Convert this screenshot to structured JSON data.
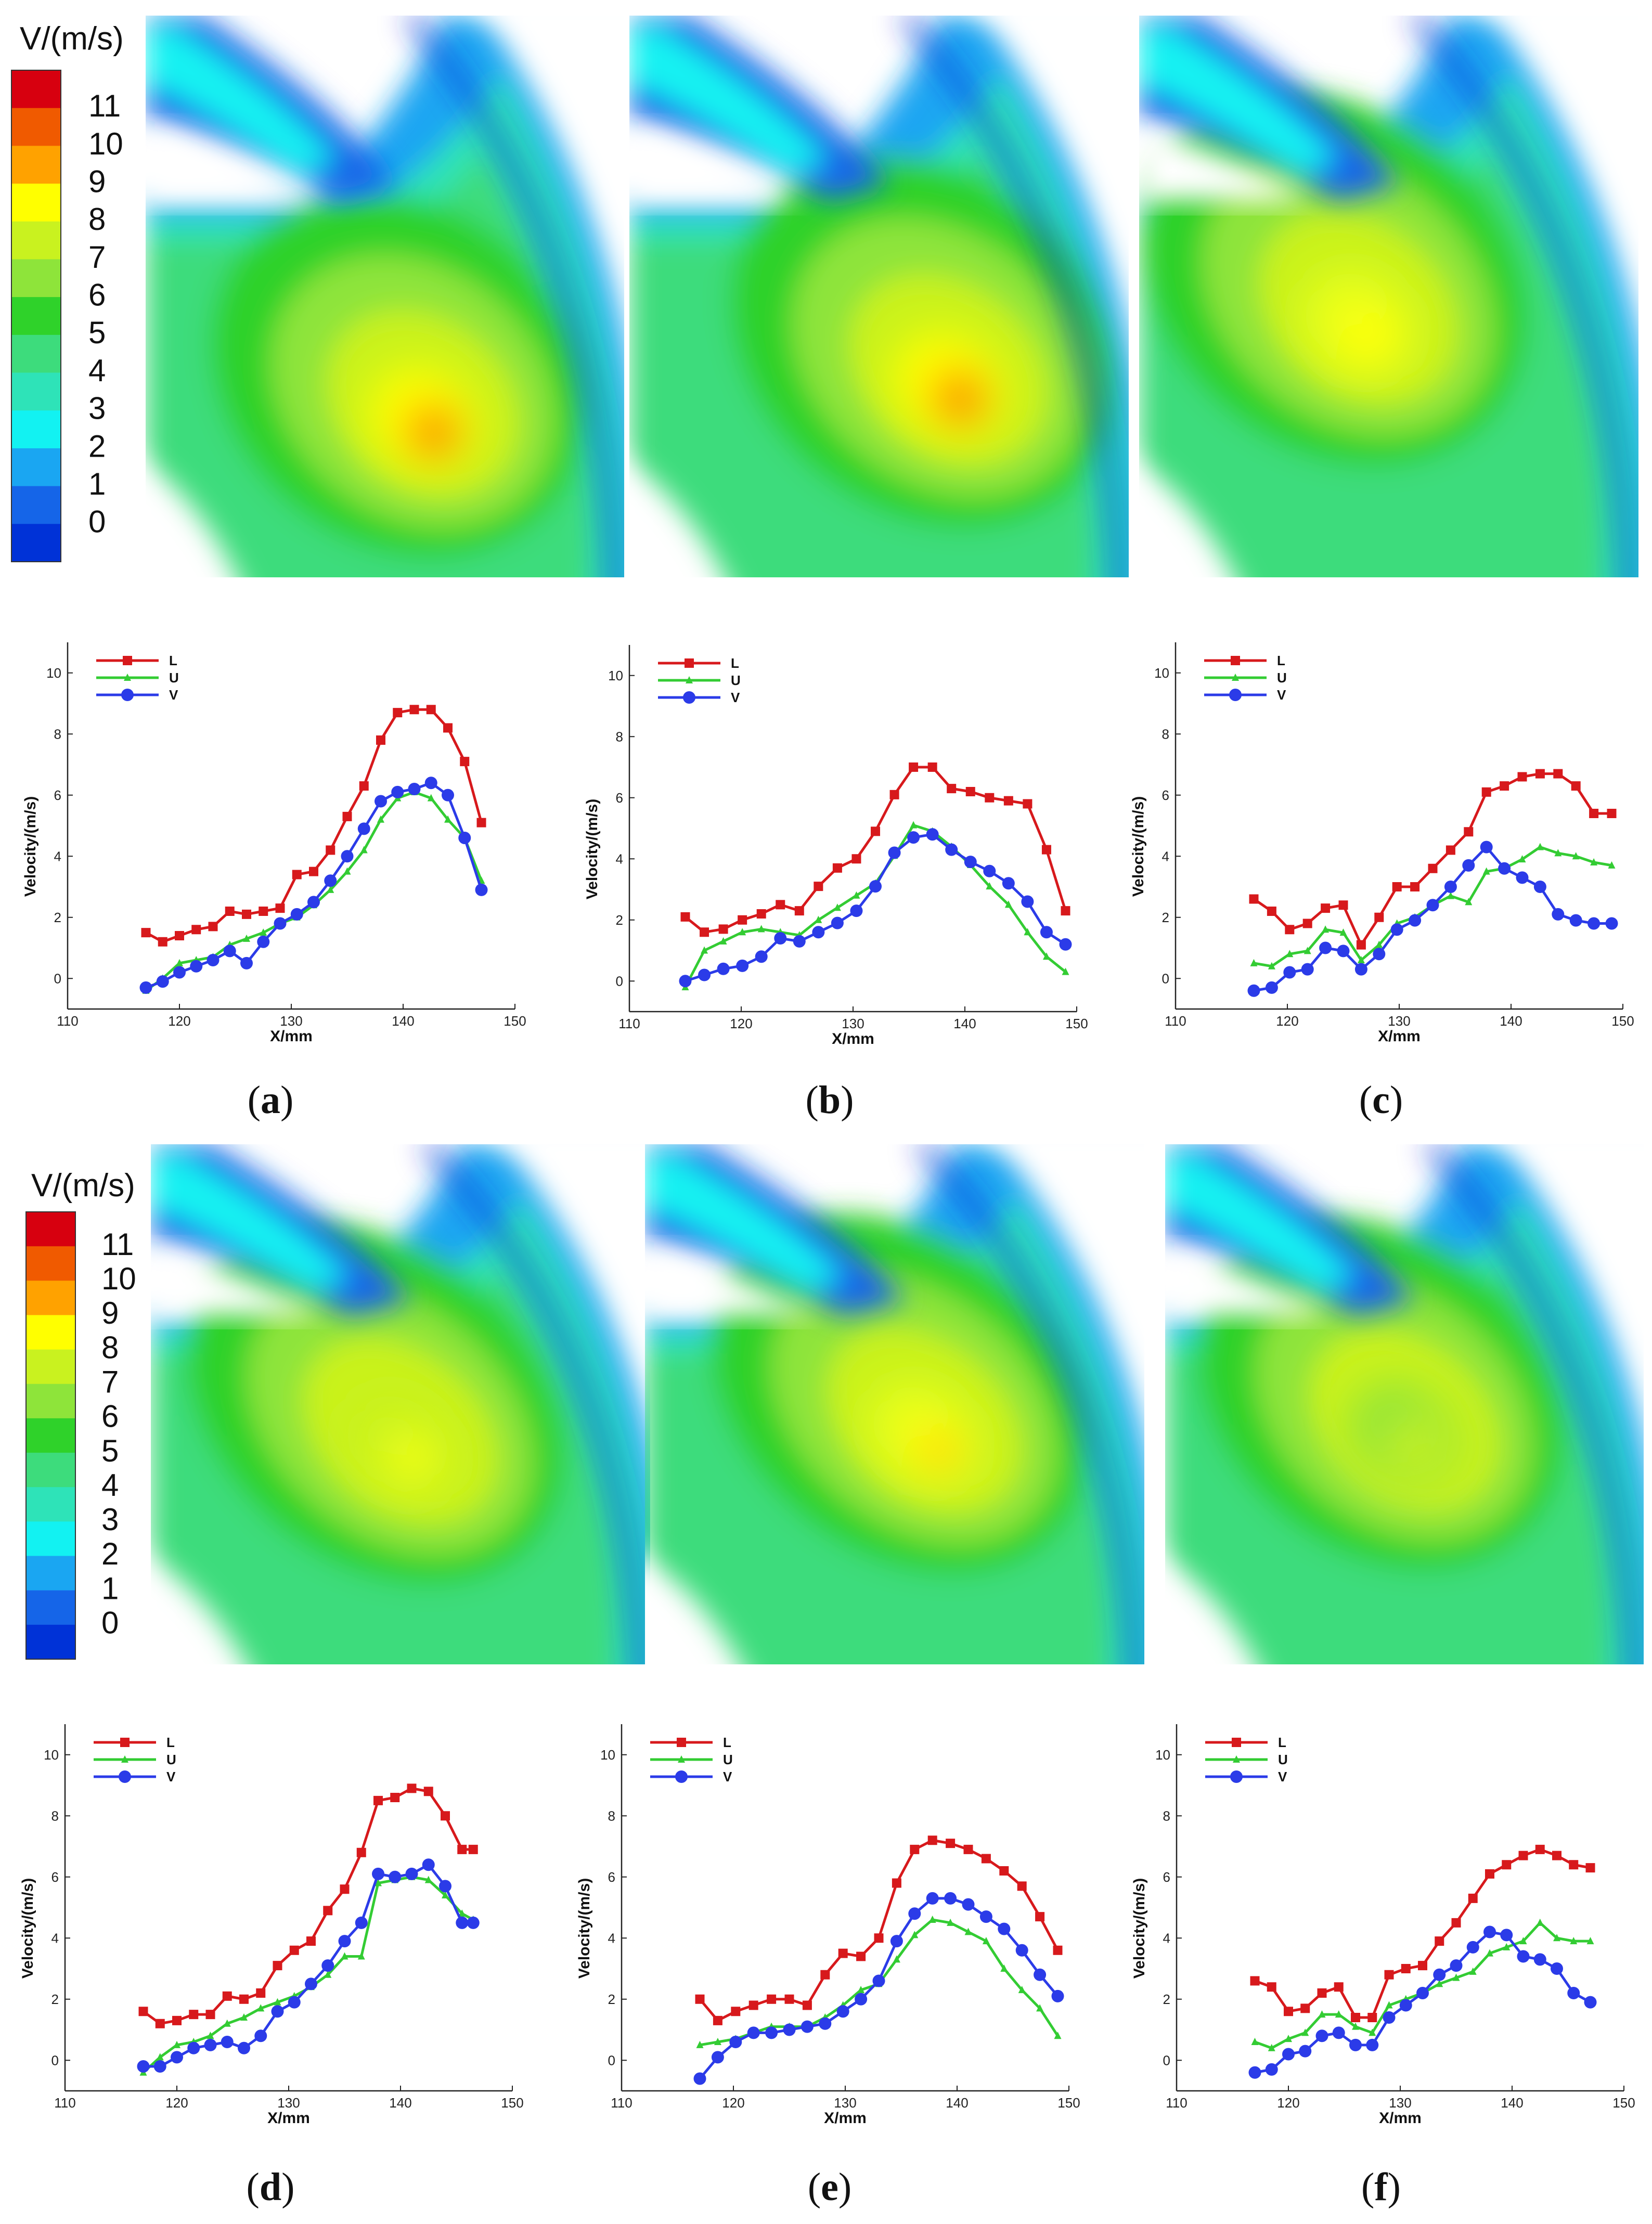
{
  "colorbar": {
    "title": "V/(m/s)",
    "labels": [
      "11",
      "10",
      "9",
      "8",
      "7",
      "6",
      "5",
      "4",
      "3",
      "2",
      "1",
      "0"
    ],
    "colors": [
      "#d7000f",
      "#f05a00",
      "#ffa200",
      "#ffff00",
      "#c9f21f",
      "#8ee43a",
      "#2fd22a",
      "#3ddc7c",
      "#2ee3b8",
      "#12f2f2",
      "#1aa6f2",
      "#1565e8",
      "#0032d7"
    ]
  },
  "series_styles": {
    "L": {
      "color": "#d7191c",
      "marker": "square"
    },
    "U": {
      "color": "#33cc33",
      "marker": "triangle"
    },
    "V": {
      "color": "#2b3be8",
      "marker": "circle"
    }
  },
  "panel_labels": [
    "(a)",
    "(b)",
    "(c)",
    "(d)",
    "(e)",
    "(f)"
  ],
  "chart_data": [
    {
      "type": "line",
      "panel": "a",
      "xlabel": "X/mm",
      "ylabel": "Velocity/(m/s)",
      "xlim": [
        110,
        150
      ],
      "ylim": [
        -1,
        11
      ],
      "xticks": [
        110,
        120,
        130,
        140,
        150
      ],
      "yticks": [
        0,
        2,
        4,
        6,
        8,
        10
      ],
      "series": [
        {
          "name": "L",
          "x": [
            117,
            118.5,
            120,
            121.5,
            123,
            124.5,
            126,
            127.5,
            129,
            130.5,
            132,
            133.5,
            135,
            136.5,
            138,
            139.5,
            141,
            142.5,
            144,
            145.5,
            147
          ],
          "values": [
            1.5,
            1.2,
            1.4,
            1.6,
            1.7,
            2.2,
            2.1,
            2.2,
            2.3,
            3.4,
            3.5,
            4.2,
            5.3,
            6.3,
            7.8,
            8.7,
            8.8,
            8.8,
            8.2,
            7.1,
            5.1
          ]
        },
        {
          "name": "U",
          "x": [
            117,
            118.5,
            120,
            121.5,
            123,
            124.5,
            126,
            127.5,
            129,
            130.5,
            132,
            133.5,
            135,
            136.5,
            138,
            139.5,
            141,
            142.5,
            144,
            145.5,
            147
          ],
          "values": [
            -0.4,
            0.0,
            0.5,
            0.6,
            0.7,
            1.1,
            1.3,
            1.5,
            1.8,
            2.0,
            2.4,
            2.9,
            3.5,
            4.2,
            5.2,
            5.9,
            6.1,
            5.9,
            5.2,
            4.6,
            3.2
          ]
        },
        {
          "name": "V",
          "x": [
            117,
            118.5,
            120,
            121.5,
            123,
            124.5,
            126,
            127.5,
            129,
            130.5,
            132,
            133.5,
            135,
            136.5,
            138,
            139.5,
            141,
            142.5,
            144,
            145.5,
            147
          ],
          "values": [
            -0.3,
            -0.1,
            0.2,
            0.4,
            0.6,
            0.9,
            0.5,
            1.2,
            1.8,
            2.1,
            2.5,
            3.2,
            4.0,
            4.9,
            5.8,
            6.1,
            6.2,
            6.4,
            6.0,
            4.6,
            2.9
          ]
        }
      ]
    },
    {
      "type": "line",
      "panel": "b",
      "xlabel": "X/mm",
      "ylabel": "Velocity/(m/s)",
      "xlim": [
        110,
        150
      ],
      "ylim": [
        -1,
        11
      ],
      "xticks": [
        110,
        120,
        130,
        140,
        150
      ],
      "yticks": [
        0,
        2,
        4,
        6,
        8,
        10
      ],
      "series": [
        {
          "name": "L",
          "x": [
            115,
            116.7,
            118.4,
            120.1,
            121.8,
            123.5,
            125.2,
            126.9,
            128.6,
            130.3,
            132,
            133.7,
            135.4,
            137.1,
            138.8,
            140.5,
            142.2,
            143.9,
            145.6,
            147.3,
            149
          ],
          "values": [
            2.1,
            1.6,
            1.7,
            2.0,
            2.2,
            2.5,
            2.3,
            3.1,
            3.7,
            4.0,
            4.9,
            6.1,
            7.0,
            7.0,
            6.3,
            6.2,
            6.0,
            5.9,
            5.8,
            4.3,
            2.3
          ]
        },
        {
          "name": "U",
          "x": [
            115,
            116.7,
            118.4,
            120.1,
            121.8,
            123.5,
            125.2,
            126.9,
            128.6,
            130.3,
            132,
            133.7,
            135.4,
            137.1,
            138.8,
            140.5,
            142.2,
            143.9,
            145.6,
            147.3,
            149
          ],
          "values": [
            -0.2,
            1.0,
            1.3,
            1.6,
            1.7,
            1.6,
            1.5,
            2.0,
            2.4,
            2.8,
            3.2,
            4.1,
            5.1,
            4.9,
            4.4,
            3.8,
            3.1,
            2.5,
            1.6,
            0.8,
            0.3
          ]
        },
        {
          "name": "V",
          "x": [
            115,
            116.7,
            118.4,
            120.1,
            121.8,
            123.5,
            125.2,
            126.9,
            128.6,
            130.3,
            132,
            133.7,
            135.4,
            137.1,
            138.8,
            140.5,
            142.2,
            143.9,
            145.6,
            147.3,
            149
          ],
          "values": [
            0.0,
            0.2,
            0.4,
            0.5,
            0.8,
            1.4,
            1.3,
            1.6,
            1.9,
            2.3,
            3.1,
            4.2,
            4.7,
            4.8,
            4.3,
            3.9,
            3.6,
            3.2,
            2.6,
            1.6,
            1.2
          ]
        }
      ]
    },
    {
      "type": "line",
      "panel": "c",
      "xlabel": "X/mm",
      "ylabel": "Velocity/(m/s)",
      "xlim": [
        110,
        150
      ],
      "ylim": [
        -1,
        11
      ],
      "xticks": [
        110,
        120,
        130,
        140,
        150
      ],
      "yticks": [
        0,
        2,
        4,
        6,
        8,
        10
      ],
      "series": [
        {
          "name": "L",
          "x": [
            117,
            118.6,
            120.2,
            121.8,
            123.4,
            125,
            126.6,
            128.2,
            129.8,
            131.4,
            133,
            134.6,
            136.2,
            137.8,
            139.4,
            141,
            142.6,
            144.2,
            145.8,
            147.4,
            149
          ],
          "values": [
            2.6,
            2.2,
            1.6,
            1.8,
            2.3,
            2.4,
            1.1,
            2.0,
            3.0,
            3.0,
            3.6,
            4.2,
            4.8,
            6.1,
            6.3,
            6.6,
            6.7,
            6.7,
            6.3,
            5.4,
            5.4
          ]
        },
        {
          "name": "U",
          "x": [
            117,
            118.6,
            120.2,
            121.8,
            123.4,
            125,
            126.6,
            128.2,
            129.8,
            131.4,
            133,
            134.6,
            136.2,
            137.8,
            139.4,
            141,
            142.6,
            144.2,
            145.8,
            147.4,
            149
          ],
          "values": [
            0.5,
            0.4,
            0.8,
            0.9,
            1.6,
            1.5,
            0.6,
            1.1,
            1.8,
            2.0,
            2.4,
            2.7,
            2.5,
            3.5,
            3.6,
            3.9,
            4.3,
            4.1,
            4.0,
            3.8,
            3.7
          ]
        },
        {
          "name": "V",
          "x": [
            117,
            118.6,
            120.2,
            121.8,
            123.4,
            125,
            126.6,
            128.2,
            129.8,
            131.4,
            133,
            134.6,
            136.2,
            137.8,
            139.4,
            141,
            142.6,
            144.2,
            145.8,
            147.4,
            149
          ],
          "values": [
            -0.4,
            -0.3,
            0.2,
            0.3,
            1.0,
            0.9,
            0.3,
            0.8,
            1.6,
            1.9,
            2.4,
            3.0,
            3.7,
            4.3,
            3.6,
            3.3,
            3.0,
            2.1,
            1.9,
            1.8,
            1.8
          ]
        }
      ]
    },
    {
      "type": "line",
      "panel": "d",
      "xlabel": "X/mm",
      "ylabel": "Velocity/(m/s)",
      "xlim": [
        110,
        150
      ],
      "ylim": [
        -1,
        11
      ],
      "xticks": [
        110,
        120,
        130,
        140,
        150
      ],
      "yticks": [
        0,
        2,
        4,
        6,
        8,
        10
      ],
      "series": [
        {
          "name": "L",
          "x": [
            117,
            118.5,
            120,
            121.5,
            123,
            124.5,
            126,
            127.5,
            129,
            130.5,
            132,
            133.5,
            135,
            136.5,
            138,
            139.5,
            141,
            142.5,
            144,
            145.5,
            146.5
          ],
          "values": [
            1.6,
            1.2,
            1.3,
            1.5,
            1.5,
            2.1,
            2.0,
            2.2,
            3.1,
            3.6,
            3.9,
            4.9,
            5.6,
            6.8,
            8.5,
            8.6,
            8.9,
            8.8,
            8.0,
            6.9,
            6.9
          ]
        },
        {
          "name": "U",
          "x": [
            117,
            118.5,
            120,
            121.5,
            123,
            124.5,
            126,
            127.5,
            129,
            130.5,
            132,
            133.5,
            135,
            136.5,
            138,
            139.5,
            141,
            142.5,
            144,
            145.5,
            146.5
          ],
          "values": [
            -0.4,
            0.1,
            0.5,
            0.6,
            0.8,
            1.2,
            1.4,
            1.7,
            1.9,
            2.1,
            2.4,
            2.8,
            3.4,
            3.4,
            5.8,
            5.9,
            6.0,
            5.9,
            5.4,
            4.8,
            4.6
          ]
        },
        {
          "name": "V",
          "x": [
            117,
            118.5,
            120,
            121.5,
            123,
            124.5,
            126,
            127.5,
            129,
            130.5,
            132,
            133.5,
            135,
            136.5,
            138,
            139.5,
            141,
            142.5,
            144,
            145.5,
            146.5
          ],
          "values": [
            -0.2,
            -0.2,
            0.1,
            0.4,
            0.5,
            0.6,
            0.4,
            0.8,
            1.6,
            1.9,
            2.5,
            3.1,
            3.9,
            4.5,
            6.1,
            6.0,
            6.1,
            6.4,
            5.7,
            4.5,
            4.5
          ]
        }
      ]
    },
    {
      "type": "line",
      "panel": "e",
      "xlabel": "X/mm",
      "ylabel": "Velocity/(m/s)",
      "xlim": [
        110,
        150
      ],
      "ylim": [
        -1,
        11
      ],
      "xticks": [
        110,
        120,
        130,
        140,
        150
      ],
      "yticks": [
        0,
        2,
        4,
        6,
        8,
        10
      ],
      "series": [
        {
          "name": "L",
          "x": [
            117,
            118.6,
            120.2,
            121.8,
            123.4,
            125,
            126.6,
            128.2,
            129.8,
            131.4,
            133,
            134.6,
            136.2,
            137.8,
            139.4,
            141,
            142.6,
            144.2,
            145.8,
            147.4,
            149
          ],
          "values": [
            2.0,
            1.3,
            1.6,
            1.8,
            2.0,
            2.0,
            1.8,
            2.8,
            3.5,
            3.4,
            4.0,
            5.8,
            6.9,
            7.2,
            7.1,
            6.9,
            6.6,
            6.2,
            5.7,
            4.7,
            3.6
          ]
        },
        {
          "name": "U",
          "x": [
            117,
            118.6,
            120.2,
            121.8,
            123.4,
            125,
            126.6,
            128.2,
            129.8,
            131.4,
            133,
            134.6,
            136.2,
            137.8,
            139.4,
            141,
            142.6,
            144.2,
            145.8,
            147.4,
            149
          ],
          "values": [
            0.5,
            0.6,
            0.7,
            0.9,
            1.1,
            1.1,
            1.1,
            1.4,
            1.8,
            2.3,
            2.5,
            3.3,
            4.1,
            4.6,
            4.5,
            4.2,
            3.9,
            3.0,
            2.3,
            1.7,
            0.8
          ]
        },
        {
          "name": "V",
          "x": [
            117,
            118.6,
            120.2,
            121.8,
            123.4,
            125,
            126.6,
            128.2,
            129.8,
            131.4,
            133,
            134.6,
            136.2,
            137.8,
            139.4,
            141,
            142.6,
            144.2,
            145.8,
            147.4,
            149
          ],
          "values": [
            -0.6,
            0.1,
            0.6,
            0.9,
            0.9,
            1.0,
            1.1,
            1.2,
            1.6,
            2.0,
            2.6,
            3.9,
            4.8,
            5.3,
            5.3,
            5.1,
            4.7,
            4.3,
            3.6,
            2.8,
            2.1
          ]
        }
      ]
    },
    {
      "type": "line",
      "panel": "f",
      "xlabel": "X/mm",
      "ylabel": "Velocity/(m/s)",
      "xlim": [
        110,
        150
      ],
      "ylim": [
        -1,
        11
      ],
      "xticks": [
        110,
        120,
        130,
        140,
        150
      ],
      "yticks": [
        0,
        2,
        4,
        6,
        8,
        10
      ],
      "series": [
        {
          "name": "L",
          "x": [
            117,
            118.5,
            120,
            121.5,
            123,
            124.5,
            126,
            127.5,
            129,
            130.5,
            132,
            133.5,
            135,
            136.5,
            138,
            139.5,
            141,
            142.5,
            144,
            145.5,
            147
          ],
          "values": [
            2.6,
            2.4,
            1.6,
            1.7,
            2.2,
            2.4,
            1.4,
            1.4,
            2.8,
            3.0,
            3.1,
            3.9,
            4.5,
            5.3,
            6.1,
            6.4,
            6.7,
            6.9,
            6.7,
            6.4,
            6.3
          ]
        },
        {
          "name": "U",
          "x": [
            117,
            118.5,
            120,
            121.5,
            123,
            124.5,
            126,
            127.5,
            129,
            130.5,
            132,
            133.5,
            135,
            136.5,
            138,
            139.5,
            141,
            142.5,
            144,
            145.5,
            147
          ],
          "values": [
            0.6,
            0.4,
            0.7,
            0.9,
            1.5,
            1.5,
            1.1,
            0.9,
            1.8,
            2.0,
            2.2,
            2.5,
            2.7,
            2.9,
            3.5,
            3.7,
            3.9,
            4.5,
            4.0,
            3.9,
            3.9
          ]
        },
        {
          "name": "V",
          "x": [
            117,
            118.5,
            120,
            121.5,
            123,
            124.5,
            126,
            127.5,
            129,
            130.5,
            132,
            133.5,
            135,
            136.5,
            138,
            139.5,
            141,
            142.5,
            144,
            145.5,
            147
          ],
          "values": [
            -0.4,
            -0.3,
            0.2,
            0.3,
            0.8,
            0.9,
            0.5,
            0.5,
            1.4,
            1.8,
            2.2,
            2.8,
            3.1,
            3.7,
            4.2,
            4.1,
            3.4,
            3.3,
            3.0,
            2.2,
            1.9
          ]
        }
      ]
    }
  ]
}
